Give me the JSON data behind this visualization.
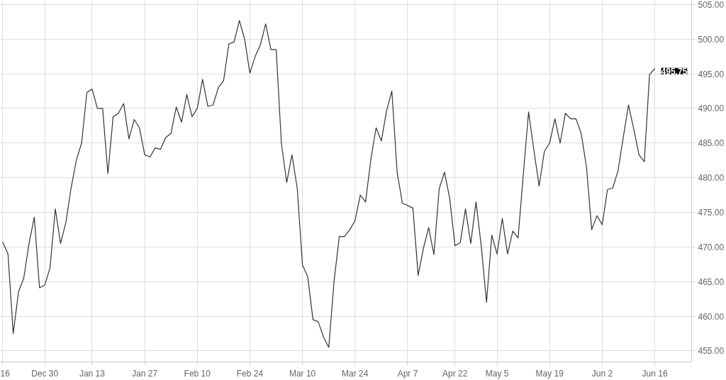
{
  "chart_data": {
    "type": "line",
    "categories": [
      "16",
      null,
      null,
      null,
      null,
      null,
      null,
      null,
      "Dec 30",
      null,
      null,
      null,
      null,
      null,
      null,
      null,
      null,
      "Jan 13",
      null,
      null,
      null,
      null,
      null,
      null,
      null,
      null,
      null,
      "Jan 27",
      null,
      null,
      null,
      null,
      null,
      null,
      null,
      null,
      null,
      "Feb 10",
      null,
      null,
      null,
      null,
      null,
      null,
      null,
      null,
      null,
      "Feb 24",
      null,
      null,
      null,
      null,
      null,
      null,
      null,
      null,
      null,
      "Mar 10",
      null,
      null,
      null,
      null,
      null,
      null,
      null,
      null,
      null,
      "Mar 24",
      null,
      null,
      null,
      null,
      null,
      null,
      null,
      null,
      null,
      "Apr 7",
      null,
      null,
      null,
      null,
      null,
      null,
      null,
      null,
      "Apr 22",
      null,
      null,
      null,
      null,
      null,
      null,
      null,
      "May 5",
      null,
      null,
      null,
      null,
      null,
      null,
      null,
      null,
      null,
      "May 19",
      null,
      null,
      null,
      null,
      null,
      null,
      null,
      null,
      null,
      "Jun 2",
      null,
      null,
      null,
      null,
      null,
      null,
      null,
      null,
      null,
      "Jun 16"
    ],
    "series": [
      {
        "color": "#333333",
        "values": [
          470.7,
          469,
          457.5,
          463.5,
          465.5,
          470.5,
          474.3,
          464.1,
          464.5,
          467,
          475.5,
          470.5,
          473.5,
          478.5,
          482.5,
          485,
          492.3,
          492.8,
          490,
          490,
          480.6,
          488.8,
          489.3,
          490.7,
          485.6,
          488.4,
          487.2,
          483.3,
          483,
          484.3,
          484.1,
          485.8,
          486.4,
          490.2,
          488,
          492,
          488.8,
          490,
          494.2,
          490.3,
          490.5,
          493,
          494,
          499.3,
          499.6,
          502.7,
          500,
          495.1,
          497.5,
          499.2,
          502.2,
          498.5,
          498.5,
          484.9,
          479.3,
          483.3,
          478.5,
          467.4,
          465.7,
          459.5,
          459.2,
          457,
          455.5,
          465,
          471.5,
          471.5,
          472.5,
          473.8,
          477.5,
          476.5,
          482.6,
          487.2,
          485.3,
          489.7,
          492.5,
          480.8,
          476.3,
          476,
          475.6,
          465.9,
          469.8,
          472.8,
          468.9,
          478.4,
          480.8,
          477,
          470.2,
          470.6,
          475.5,
          470.5,
          476.5,
          470.1,
          462,
          471.7,
          469,
          474.1,
          469,
          472.3,
          471.3,
          480.5,
          489.5,
          484,
          478.8,
          483.8,
          485,
          488.5,
          485,
          489.3,
          488.5,
          488.5,
          486.4,
          481.6,
          472.5,
          474.5,
          473.2,
          478.3,
          478.5,
          481,
          485.8,
          490.5,
          487,
          483.3,
          482.3,
          494.9,
          495.75
        ]
      }
    ],
    "ylim": [
      453.4,
      505.6
    ],
    "yticks": [
      {
        "value": 455,
        "label": "455.00"
      },
      {
        "value": 460,
        "label": "460.00"
      },
      {
        "value": 465,
        "label": "465.00"
      },
      {
        "value": 470,
        "label": "470.00"
      },
      {
        "value": 475,
        "label": "475.00"
      },
      {
        "value": 480,
        "label": "480.00"
      },
      {
        "value": 485,
        "label": "485.00"
      },
      {
        "value": 490,
        "label": "490.00"
      },
      {
        "value": 495,
        "label": "495.00"
      },
      {
        "value": 500,
        "label": "500.00"
      },
      {
        "value": 505,
        "label": "505.00"
      }
    ],
    "annotations": [
      {
        "text": "495.75",
        "x": "Jun 16",
        "y": 495.75
      }
    ],
    "grid": true,
    "marker": "none",
    "line_style": "solid"
  }
}
